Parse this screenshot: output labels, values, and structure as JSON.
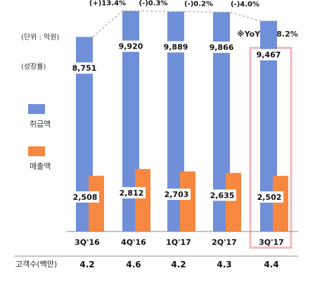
{
  "chart_data": {
    "type": "bar",
    "unit_label": "(단위 : 억원)",
    "growth_label": "(성장률)",
    "yoy_note": "※YoY (+)8.2%",
    "categories": [
      "3Q'16",
      "4Q'16",
      "1Q'17",
      "2Q'17",
      "3Q'17"
    ],
    "series": [
      {
        "name": "취급액",
        "color": "#6f8fd9",
        "values": [
          8751,
          9920,
          9889,
          9866,
          9467
        ],
        "value_labels": [
          "8,751",
          "9,920",
          "9,889",
          "9,866",
          "9,467"
        ]
      },
      {
        "name": "매출액",
        "color": "#f6883f",
        "values": [
          2508,
          2812,
          2703,
          2635,
          2502
        ],
        "value_labels": [
          "2,508",
          "2,812",
          "2,703",
          "2,635",
          "2,502"
        ]
      }
    ],
    "growth_rates": [
      "(+)13.4%",
      "(-)0.3%",
      "(-)0.2%",
      "(-)4.0%"
    ],
    "highlight_category": "3Q'17",
    "highlight_color": "#f0b9bd",
    "customer_row": {
      "label": "고객수(백만)",
      "values": [
        "4.2",
        "4.6",
        "4.2",
        "4.3",
        "4.4"
      ]
    },
    "ylim": [
      0,
      10000
    ]
  }
}
